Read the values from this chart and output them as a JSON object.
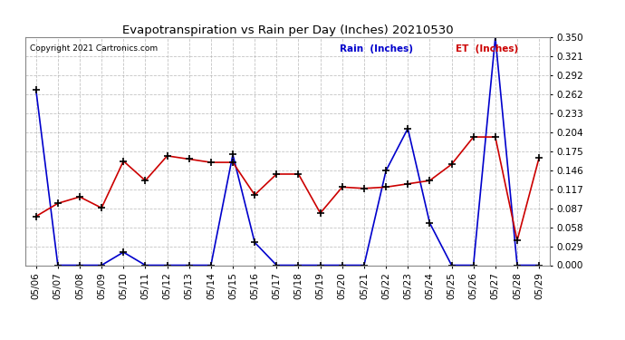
{
  "title": "Evapotranspiration vs Rain per Day (Inches) 20210530",
  "copyright": "Copyright 2021 Cartronics.com",
  "legend_rain": "Rain  (Inches)",
  "legend_et": "ET  (Inches)",
  "dates": [
    "05/06",
    "05/07",
    "05/08",
    "05/09",
    "05/10",
    "05/11",
    "05/12",
    "05/13",
    "05/14",
    "05/15",
    "05/16",
    "05/17",
    "05/18",
    "05/19",
    "05/20",
    "05/21",
    "05/22",
    "05/23",
    "05/24",
    "05/25",
    "05/26",
    "05/27",
    "05/28",
    "05/29"
  ],
  "rain": [
    0.27,
    0.0,
    0.0,
    0.0,
    0.02,
    0.0,
    0.0,
    0.0,
    0.0,
    0.17,
    0.035,
    0.0,
    0.0,
    0.0,
    0.0,
    0.0,
    0.145,
    0.21,
    0.065,
    0.0,
    0.0,
    0.35,
    0.0,
    0.0
  ],
  "et": [
    0.075,
    0.095,
    0.105,
    0.088,
    0.16,
    0.13,
    0.168,
    0.163,
    0.158,
    0.158,
    0.108,
    0.14,
    0.14,
    0.08,
    0.12,
    0.118,
    0.12,
    0.125,
    0.13,
    0.155,
    0.197,
    0.197,
    0.038,
    0.165
  ],
  "rain_color": "#0000cc",
  "et_color": "#cc0000",
  "marker_color": "#000000",
  "background_color": "#ffffff",
  "grid_color": "#aaaaaa",
  "title_color": "#000000",
  "copyright_color": "#000000",
  "ylim": [
    0.0,
    0.35
  ],
  "yticks": [
    0.0,
    0.029,
    0.058,
    0.087,
    0.117,
    0.146,
    0.175,
    0.204,
    0.233,
    0.262,
    0.292,
    0.321,
    0.35
  ]
}
